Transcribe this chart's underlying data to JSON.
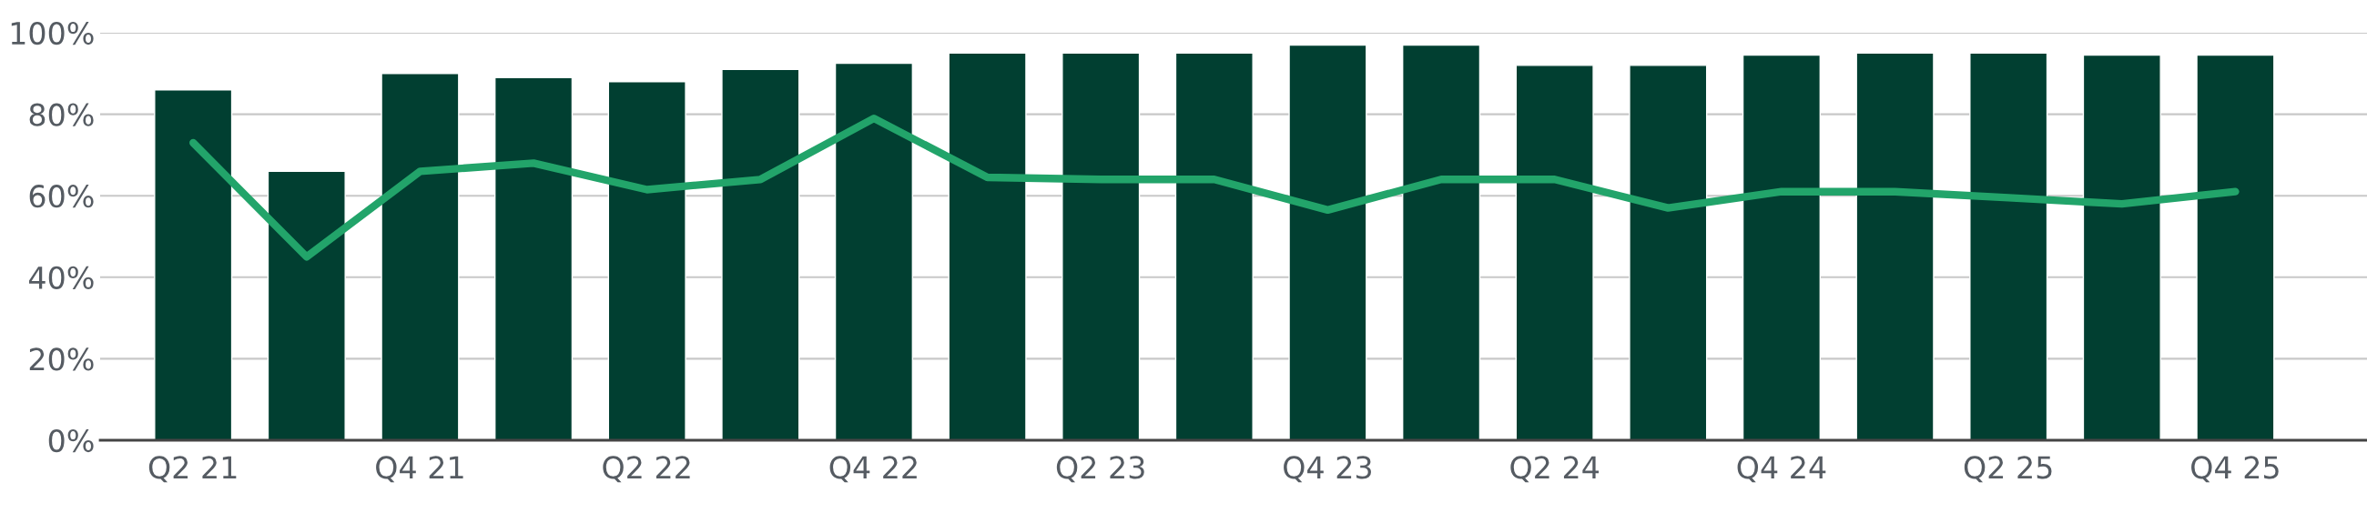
{
  "chart_data": {
    "type": "bar",
    "categories": [
      "Q2 21",
      null,
      "Q4 21",
      null,
      "Q2 22",
      null,
      "Q4 22",
      null,
      "Q2 23",
      null,
      "Q4 23",
      null,
      "Q2 24",
      null,
      "Q4 24",
      null,
      "Q2 25",
      null,
      "Q4 25"
    ],
    "series": [
      {
        "color": "#013f31",
        "values": [
          86,
          66,
          90,
          89,
          88,
          91,
          92.5,
          95,
          95,
          95,
          97,
          97,
          92,
          92,
          94.5,
          95,
          95,
          94.5,
          94.5
        ]
      },
      {
        "type": "line",
        "color": "#22a46a",
        "values": [
          73,
          45,
          66,
          68,
          61.5,
          64,
          79,
          64.5,
          64,
          64,
          56.5,
          64,
          64,
          57,
          61,
          61,
          59.5,
          58,
          61
        ]
      }
    ],
    "ylim": [
      0,
      100
    ],
    "yticks": [
      {
        "value": 0,
        "label": "0%"
      },
      {
        "value": 20,
        "label": "20%"
      },
      {
        "value": 40,
        "label": "40%"
      },
      {
        "value": 60,
        "label": "60%"
      },
      {
        "value": 80,
        "label": "80%"
      },
      {
        "value": 100,
        "label": "100%"
      }
    ],
    "grid": "y",
    "legend": false,
    "marker": "none",
    "line_style": "solid"
  }
}
